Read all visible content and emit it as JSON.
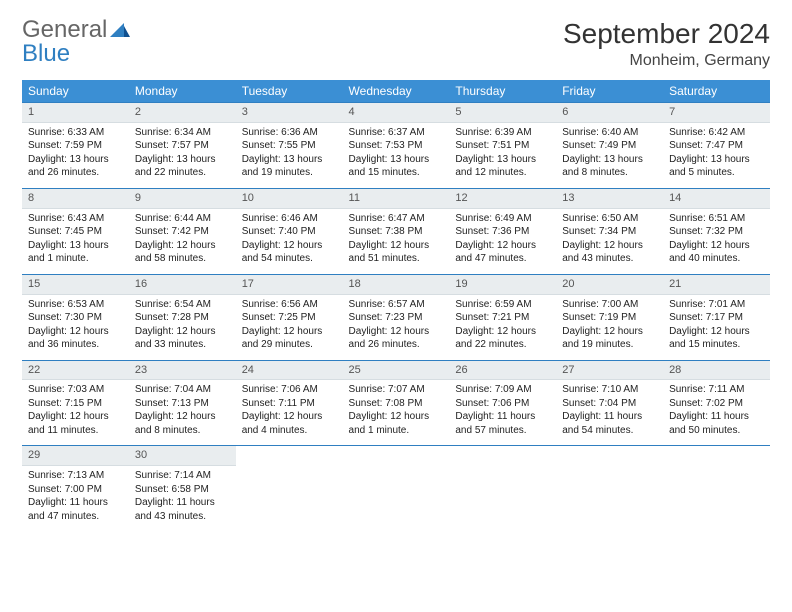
{
  "logo": {
    "word1": "General",
    "word2": "Blue"
  },
  "title": "September 2024",
  "location": "Monheim, Germany",
  "colors": {
    "brand_blue": "#3b8fd4",
    "accent_line": "#2f7fc1",
    "daynum_bg": "#e9edef",
    "text": "#222222",
    "header_text": "#ffffff"
  },
  "weekdays": [
    "Sunday",
    "Monday",
    "Tuesday",
    "Wednesday",
    "Thursday",
    "Friday",
    "Saturday"
  ],
  "weeks": [
    [
      {
        "n": "1",
        "sr": "Sunrise: 6:33 AM",
        "ss": "Sunset: 7:59 PM",
        "dl": "Daylight: 13 hours and 26 minutes."
      },
      {
        "n": "2",
        "sr": "Sunrise: 6:34 AM",
        "ss": "Sunset: 7:57 PM",
        "dl": "Daylight: 13 hours and 22 minutes."
      },
      {
        "n": "3",
        "sr": "Sunrise: 6:36 AM",
        "ss": "Sunset: 7:55 PM",
        "dl": "Daylight: 13 hours and 19 minutes."
      },
      {
        "n": "4",
        "sr": "Sunrise: 6:37 AM",
        "ss": "Sunset: 7:53 PM",
        "dl": "Daylight: 13 hours and 15 minutes."
      },
      {
        "n": "5",
        "sr": "Sunrise: 6:39 AM",
        "ss": "Sunset: 7:51 PM",
        "dl": "Daylight: 13 hours and 12 minutes."
      },
      {
        "n": "6",
        "sr": "Sunrise: 6:40 AM",
        "ss": "Sunset: 7:49 PM",
        "dl": "Daylight: 13 hours and 8 minutes."
      },
      {
        "n": "7",
        "sr": "Sunrise: 6:42 AM",
        "ss": "Sunset: 7:47 PM",
        "dl": "Daylight: 13 hours and 5 minutes."
      }
    ],
    [
      {
        "n": "8",
        "sr": "Sunrise: 6:43 AM",
        "ss": "Sunset: 7:45 PM",
        "dl": "Daylight: 13 hours and 1 minute."
      },
      {
        "n": "9",
        "sr": "Sunrise: 6:44 AM",
        "ss": "Sunset: 7:42 PM",
        "dl": "Daylight: 12 hours and 58 minutes."
      },
      {
        "n": "10",
        "sr": "Sunrise: 6:46 AM",
        "ss": "Sunset: 7:40 PM",
        "dl": "Daylight: 12 hours and 54 minutes."
      },
      {
        "n": "11",
        "sr": "Sunrise: 6:47 AM",
        "ss": "Sunset: 7:38 PM",
        "dl": "Daylight: 12 hours and 51 minutes."
      },
      {
        "n": "12",
        "sr": "Sunrise: 6:49 AM",
        "ss": "Sunset: 7:36 PM",
        "dl": "Daylight: 12 hours and 47 minutes."
      },
      {
        "n": "13",
        "sr": "Sunrise: 6:50 AM",
        "ss": "Sunset: 7:34 PM",
        "dl": "Daylight: 12 hours and 43 minutes."
      },
      {
        "n": "14",
        "sr": "Sunrise: 6:51 AM",
        "ss": "Sunset: 7:32 PM",
        "dl": "Daylight: 12 hours and 40 minutes."
      }
    ],
    [
      {
        "n": "15",
        "sr": "Sunrise: 6:53 AM",
        "ss": "Sunset: 7:30 PM",
        "dl": "Daylight: 12 hours and 36 minutes."
      },
      {
        "n": "16",
        "sr": "Sunrise: 6:54 AM",
        "ss": "Sunset: 7:28 PM",
        "dl": "Daylight: 12 hours and 33 minutes."
      },
      {
        "n": "17",
        "sr": "Sunrise: 6:56 AM",
        "ss": "Sunset: 7:25 PM",
        "dl": "Daylight: 12 hours and 29 minutes."
      },
      {
        "n": "18",
        "sr": "Sunrise: 6:57 AM",
        "ss": "Sunset: 7:23 PM",
        "dl": "Daylight: 12 hours and 26 minutes."
      },
      {
        "n": "19",
        "sr": "Sunrise: 6:59 AM",
        "ss": "Sunset: 7:21 PM",
        "dl": "Daylight: 12 hours and 22 minutes."
      },
      {
        "n": "20",
        "sr": "Sunrise: 7:00 AM",
        "ss": "Sunset: 7:19 PM",
        "dl": "Daylight: 12 hours and 19 minutes."
      },
      {
        "n": "21",
        "sr": "Sunrise: 7:01 AM",
        "ss": "Sunset: 7:17 PM",
        "dl": "Daylight: 12 hours and 15 minutes."
      }
    ],
    [
      {
        "n": "22",
        "sr": "Sunrise: 7:03 AM",
        "ss": "Sunset: 7:15 PM",
        "dl": "Daylight: 12 hours and 11 minutes."
      },
      {
        "n": "23",
        "sr": "Sunrise: 7:04 AM",
        "ss": "Sunset: 7:13 PM",
        "dl": "Daylight: 12 hours and 8 minutes."
      },
      {
        "n": "24",
        "sr": "Sunrise: 7:06 AM",
        "ss": "Sunset: 7:11 PM",
        "dl": "Daylight: 12 hours and 4 minutes."
      },
      {
        "n": "25",
        "sr": "Sunrise: 7:07 AM",
        "ss": "Sunset: 7:08 PM",
        "dl": "Daylight: 12 hours and 1 minute."
      },
      {
        "n": "26",
        "sr": "Sunrise: 7:09 AM",
        "ss": "Sunset: 7:06 PM",
        "dl": "Daylight: 11 hours and 57 minutes."
      },
      {
        "n": "27",
        "sr": "Sunrise: 7:10 AM",
        "ss": "Sunset: 7:04 PM",
        "dl": "Daylight: 11 hours and 54 minutes."
      },
      {
        "n": "28",
        "sr": "Sunrise: 7:11 AM",
        "ss": "Sunset: 7:02 PM",
        "dl": "Daylight: 11 hours and 50 minutes."
      }
    ],
    [
      {
        "n": "29",
        "sr": "Sunrise: 7:13 AM",
        "ss": "Sunset: 7:00 PM",
        "dl": "Daylight: 11 hours and 47 minutes."
      },
      {
        "n": "30",
        "sr": "Sunrise: 7:14 AM",
        "ss": "Sunset: 6:58 PM",
        "dl": "Daylight: 11 hours and 43 minutes."
      },
      null,
      null,
      null,
      null,
      null
    ]
  ]
}
